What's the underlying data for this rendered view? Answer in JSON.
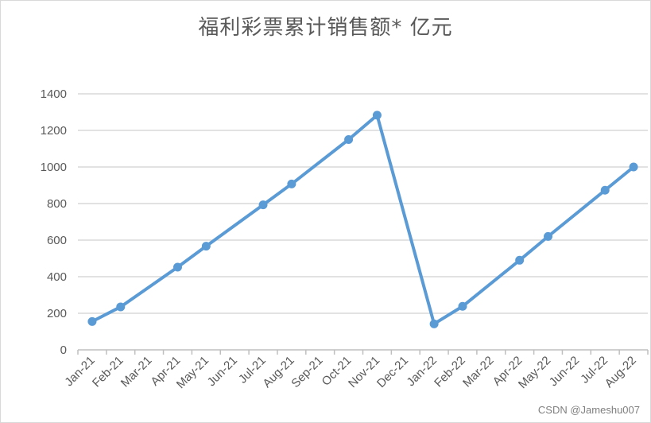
{
  "chart_data": {
    "type": "line",
    "title": "福利彩票累计销售额* 亿元",
    "categories": [
      "Jan-21",
      "Feb-21",
      "Mar-21",
      "Apr-21",
      "May-21",
      "Jun-21",
      "Jul-21",
      "Aug-21",
      "Sep-21",
      "Oct-21",
      "Nov-21",
      "Dec-21",
      "Jan-22",
      "Feb-22",
      "Mar-22",
      "Apr-22",
      "May-22",
      "Jun-22",
      "Jul-22",
      "Aug-22"
    ],
    "series": [
      {
        "values": [
          155,
          235,
          null,
          452,
          567,
          null,
          793,
          907,
          null,
          1150,
          1283,
          null,
          142,
          238,
          null,
          490,
          620,
          null,
          873,
          1000
        ]
      }
    ],
    "ylim": [
      0,
      1400
    ],
    "yticks": [
      0,
      200,
      400,
      600,
      800,
      1000,
      1200,
      1400
    ],
    "grid": true,
    "xlabel": "",
    "ylabel": "",
    "colors": {
      "line": "#5b9bd5",
      "grid": "#d9d9d9",
      "axis": "#bfbfbf",
      "text": "#595959"
    }
  },
  "watermark": "CSDN @Jameshu007"
}
